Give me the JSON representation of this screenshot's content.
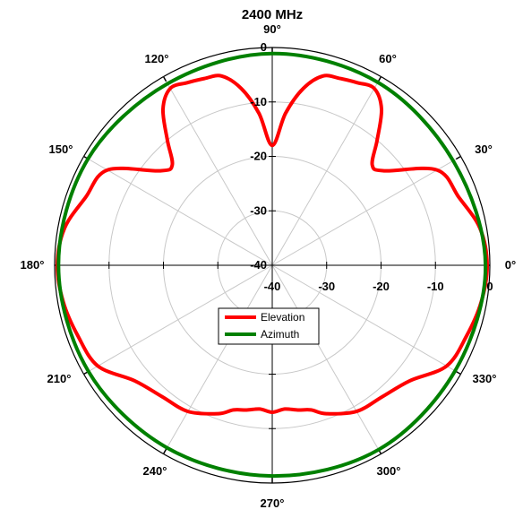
{
  "chart_data": {
    "type": "polar-line",
    "title": "2400 MHz",
    "radial_axis": {
      "range": [
        -40,
        0
      ],
      "ticks": [
        -40,
        -30,
        -20,
        -10,
        0
      ],
      "tick_labels": [
        "-40",
        "-30",
        "-20",
        "-10",
        "0"
      ]
    },
    "angular_axis": {
      "unit": "degrees",
      "direction": "counterclockwise",
      "zero_at": "right",
      "ticks": [
        0,
        30,
        60,
        90,
        120,
        150,
        180,
        210,
        240,
        270,
        300,
        330
      ],
      "tick_labels": [
        "0°",
        "30°",
        "60°",
        "90°",
        "120°",
        "150°",
        "180°",
        "210°",
        "240°",
        "270°",
        "300°",
        "330°"
      ]
    },
    "grid": true,
    "legend": {
      "position": "center-lower",
      "entries": [
        "Elevation",
        "Azimuth"
      ]
    },
    "series": [
      {
        "name": "Elevation",
        "color": "#ff0000",
        "angles": [
          0,
          10,
          20,
          30,
          40,
          45,
          50,
          55,
          60,
          65,
          70,
          75,
          80,
          85,
          90,
          95,
          100,
          105,
          110,
          115,
          120,
          125,
          130,
          135,
          140,
          150,
          160,
          170,
          180,
          190,
          200,
          210,
          220,
          230,
          240,
          250,
          255,
          260,
          265,
          270,
          275,
          280,
          285,
          290,
          300,
          310,
          320,
          330,
          340,
          350,
          360
        ],
        "values": [
          -0.5,
          -1.2,
          -3.5,
          -5,
          -13,
          -14,
          -10,
          -5,
          -2.5,
          -3,
          -3.5,
          -4,
          -7,
          -12,
          -18,
          -12,
          -7,
          -4,
          -3.5,
          -3,
          -2.5,
          -5,
          -10,
          -14,
          -13,
          -5,
          -3.5,
          -1.2,
          -0.5,
          -1,
          -2,
          -3,
          -7,
          -8.5,
          -9,
          -11,
          -12.5,
          -13,
          -13.5,
          -13,
          -13.5,
          -13,
          -12.5,
          -11,
          -9,
          -8.5,
          -7,
          -3,
          -2,
          -1,
          -0.5
        ]
      },
      {
        "name": "Azimuth",
        "color": "#008000",
        "angles": [
          0,
          30,
          60,
          90,
          120,
          150,
          180,
          210,
          240,
          270,
          300,
          330,
          360
        ],
        "values": [
          -0.8,
          -1.6,
          -1.2,
          -1.1,
          -1.5,
          -0.9,
          -0.7,
          -1.0,
          -1.3,
          -1.3,
          -0.9,
          -1.2,
          -0.8
        ]
      }
    ]
  }
}
